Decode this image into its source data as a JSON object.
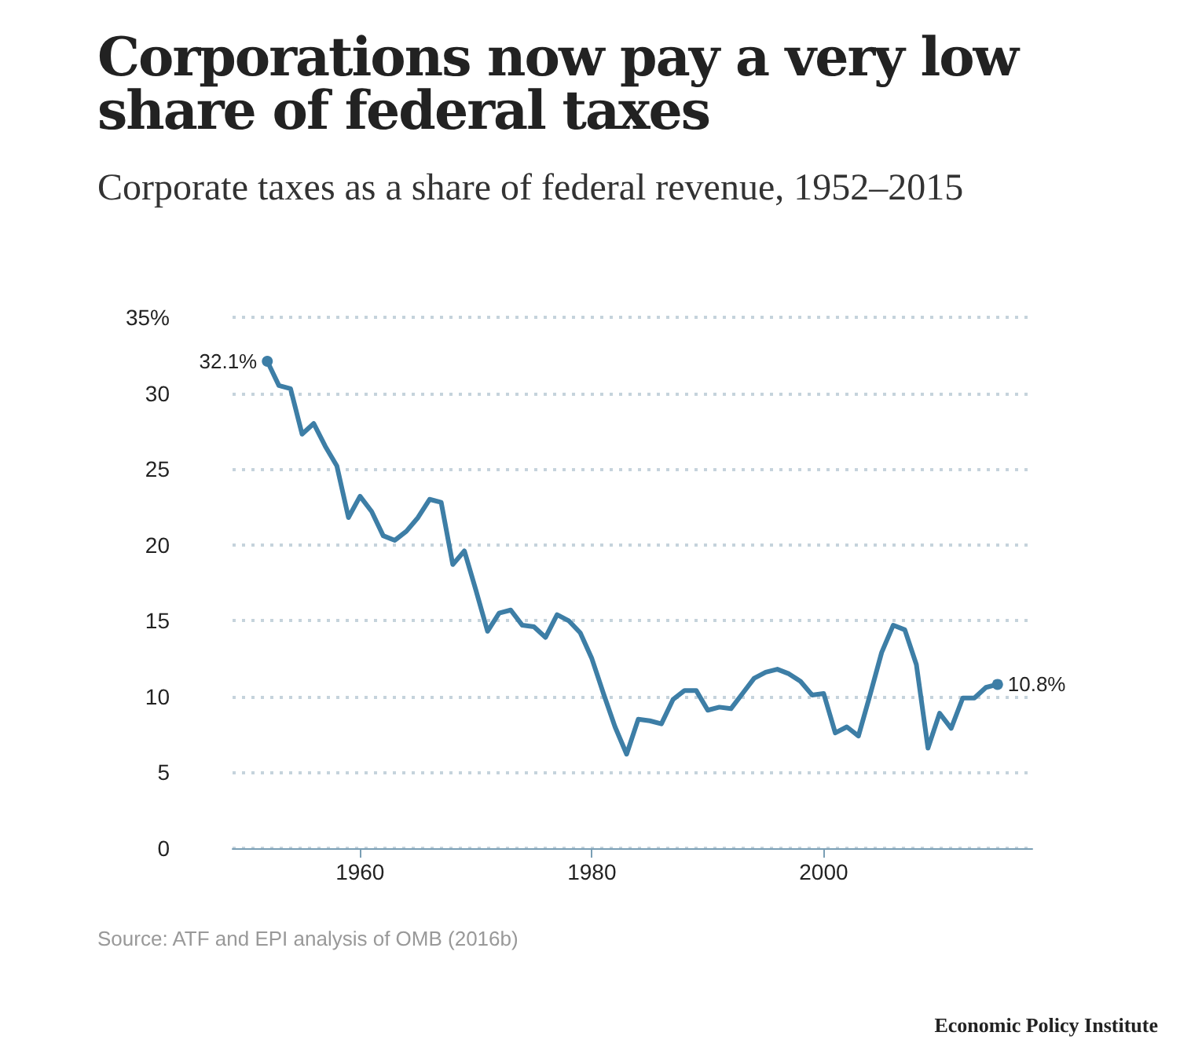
{
  "chart_data": {
    "type": "line",
    "title": "Corporations now pay a very low share of federal taxes",
    "subtitle": "Corporate taxes as a share of federal revenue, 1952–2015",
    "x": [
      1952,
      1953,
      1954,
      1955,
      1956,
      1957,
      1958,
      1959,
      1960,
      1961,
      1962,
      1963,
      1964,
      1965,
      1966,
      1967,
      1968,
      1969,
      1970,
      1971,
      1972,
      1973,
      1974,
      1975,
      1976,
      1977,
      1978,
      1979,
      1980,
      1981,
      1982,
      1983,
      1984,
      1985,
      1986,
      1987,
      1988,
      1989,
      1990,
      1991,
      1992,
      1993,
      1994,
      1995,
      1996,
      1997,
      1998,
      1999,
      2000,
      2001,
      2002,
      2003,
      2004,
      2005,
      2006,
      2007,
      2008,
      2009,
      2010,
      2011,
      2012,
      2013,
      2014,
      2015
    ],
    "series": [
      {
        "color": "#3d7ea6",
        "values": [
          32.1,
          30.5,
          30.3,
          27.3,
          28.0,
          26.5,
          25.2,
          21.8,
          23.2,
          22.2,
          20.6,
          20.3,
          20.9,
          21.8,
          23.0,
          22.8,
          18.7,
          19.6,
          17.0,
          14.3,
          15.5,
          15.7,
          14.7,
          14.6,
          13.9,
          15.4,
          15.0,
          14.2,
          12.5,
          10.2,
          8.0,
          6.2,
          8.5,
          8.4,
          8.2,
          9.8,
          10.4,
          10.4,
          9.1,
          9.3,
          9.2,
          10.2,
          11.2,
          11.6,
          11.8,
          11.5,
          11.0,
          10.1,
          10.2,
          7.6,
          8.0,
          7.4,
          10.1,
          12.9,
          14.7,
          14.4,
          12.1,
          6.6,
          8.9,
          7.9,
          9.9,
          9.9,
          10.6,
          10.8
        ],
        "value_labels": [
          "32.1%",
          null,
          null,
          null,
          null,
          null,
          null,
          null,
          null,
          null,
          null,
          null,
          null,
          null,
          null,
          null,
          null,
          null,
          null,
          null,
          null,
          null,
          null,
          null,
          null,
          null,
          null,
          null,
          null,
          null,
          null,
          null,
          null,
          null,
          null,
          null,
          null,
          null,
          null,
          null,
          null,
          null,
          null,
          null,
          null,
          null,
          null,
          null,
          null,
          null,
          null,
          null,
          null,
          null,
          null,
          null,
          null,
          null,
          null,
          null,
          null,
          null,
          null,
          "10.8%"
        ]
      }
    ],
    "xlim": [
      1949,
      2018
    ],
    "xticks": [
      1960,
      1980,
      2000
    ],
    "ylim": [
      0,
      35
    ],
    "yticks": [
      0,
      5,
      10,
      15,
      20,
      25,
      30,
      {
        "value": 35,
        "label": "35%"
      }
    ],
    "grid": "y",
    "line_style": "solid",
    "annotations": [
      "Source: ATF and EPI analysis of OMB (2016b)",
      "Economic Policy Institute"
    ]
  }
}
